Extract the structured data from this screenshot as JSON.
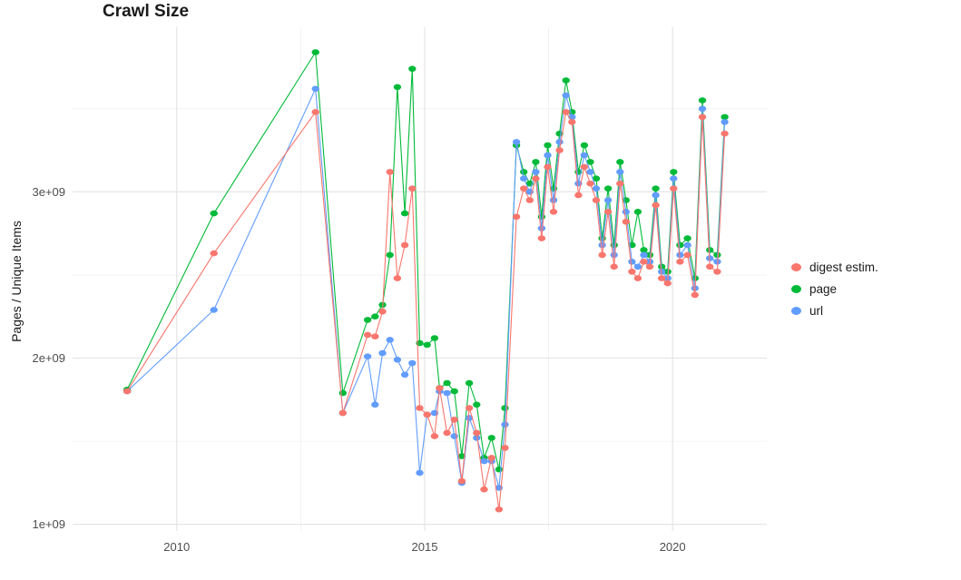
{
  "chart_data": {
    "type": "line",
    "title": "Crawl Size",
    "xlabel": "",
    "ylabel": "Pages / Unique Items",
    "y_unit": "billions (1e9)",
    "xlim": [
      2007.9,
      2021.9
    ],
    "ylim": [
      0.96,
      3.99
    ],
    "grid": true,
    "legend_position": "right",
    "x_ticks": [
      {
        "value": 2010,
        "label": "2010"
      },
      {
        "value": 2015,
        "label": "2015"
      },
      {
        "value": 2020,
        "label": "2020"
      }
    ],
    "y_ticks": [
      {
        "value": 1,
        "label": "1e+09"
      },
      {
        "value": 2,
        "label": "2e+09"
      },
      {
        "value": 3,
        "label": "3e+09"
      }
    ],
    "x_minor": [
      2012.5,
      2017.5
    ],
    "y_minor": [
      1.5,
      2.5,
      3.5
    ],
    "series": [
      {
        "name": "digest estim.",
        "color": "#F8766D",
        "points": [
          [
            2009.0,
            1.8
          ],
          [
            2010.75,
            2.63
          ],
          [
            2012.8,
            3.48
          ],
          [
            2013.35,
            1.67
          ],
          [
            2013.85,
            2.14
          ],
          [
            2014.0,
            2.13
          ],
          [
            2014.15,
            2.28
          ],
          [
            2014.3,
            3.12
          ],
          [
            2014.45,
            2.48
          ],
          [
            2014.6,
            2.68
          ],
          [
            2014.75,
            3.02
          ],
          [
            2014.9,
            1.7
          ],
          [
            2015.05,
            1.66
          ],
          [
            2015.2,
            1.53
          ],
          [
            2015.3,
            1.82
          ],
          [
            2015.45,
            1.55
          ],
          [
            2015.6,
            1.63
          ],
          [
            2015.75,
            1.26
          ],
          [
            2015.9,
            1.7
          ],
          [
            2016.05,
            1.55
          ],
          [
            2016.2,
            1.21
          ],
          [
            2016.35,
            1.4
          ],
          [
            2016.5,
            1.09
          ],
          [
            2016.62,
            1.46
          ],
          [
            2016.85,
            2.85
          ],
          [
            2017.0,
            3.02
          ],
          [
            2017.12,
            2.95
          ],
          [
            2017.24,
            3.08
          ],
          [
            2017.36,
            2.72
          ],
          [
            2017.48,
            3.15
          ],
          [
            2017.6,
            2.88
          ],
          [
            2017.72,
            3.25
          ],
          [
            2017.85,
            3.48
          ],
          [
            2017.97,
            3.42
          ],
          [
            2018.1,
            2.98
          ],
          [
            2018.22,
            3.15
          ],
          [
            2018.34,
            3.05
          ],
          [
            2018.46,
            2.95
          ],
          [
            2018.58,
            2.62
          ],
          [
            2018.7,
            2.88
          ],
          [
            2018.82,
            2.55
          ],
          [
            2018.94,
            3.05
          ],
          [
            2019.06,
            2.82
          ],
          [
            2019.18,
            2.52
          ],
          [
            2019.3,
            2.48
          ],
          [
            2019.42,
            2.58
          ],
          [
            2019.54,
            2.55
          ],
          [
            2019.66,
            2.92
          ],
          [
            2019.78,
            2.48
          ],
          [
            2019.9,
            2.45
          ],
          [
            2020.02,
            3.02
          ],
          [
            2020.15,
            2.58
          ],
          [
            2020.3,
            2.62
          ],
          [
            2020.45,
            2.38
          ],
          [
            2020.6,
            3.45
          ],
          [
            2020.75,
            2.55
          ],
          [
            2020.9,
            2.52
          ],
          [
            2021.05,
            3.35
          ]
        ]
      },
      {
        "name": "page",
        "color": "#00BA38",
        "points": [
          [
            2009.0,
            1.81
          ],
          [
            2010.75,
            2.87
          ],
          [
            2012.8,
            3.84
          ],
          [
            2013.35,
            1.79
          ],
          [
            2013.85,
            2.23
          ],
          [
            2014.0,
            2.25
          ],
          [
            2014.15,
            2.32
          ],
          [
            2014.3,
            2.62
          ],
          [
            2014.45,
            3.63
          ],
          [
            2014.6,
            2.87
          ],
          [
            2014.75,
            3.74
          ],
          [
            2014.9,
            2.09
          ],
          [
            2015.05,
            2.08
          ],
          [
            2015.2,
            2.12
          ],
          [
            2015.3,
            1.82
          ],
          [
            2015.45,
            1.85
          ],
          [
            2015.6,
            1.8
          ],
          [
            2015.75,
            1.41
          ],
          [
            2015.9,
            1.85
          ],
          [
            2016.05,
            1.72
          ],
          [
            2016.2,
            1.4
          ],
          [
            2016.35,
            1.52
          ],
          [
            2016.5,
            1.33
          ],
          [
            2016.62,
            1.7
          ],
          [
            2016.85,
            3.28
          ],
          [
            2017.0,
            3.12
          ],
          [
            2017.12,
            3.05
          ],
          [
            2017.24,
            3.18
          ],
          [
            2017.36,
            2.85
          ],
          [
            2017.48,
            3.28
          ],
          [
            2017.6,
            3.02
          ],
          [
            2017.72,
            3.35
          ],
          [
            2017.85,
            3.67
          ],
          [
            2017.97,
            3.48
          ],
          [
            2018.1,
            3.12
          ],
          [
            2018.22,
            3.28
          ],
          [
            2018.34,
            3.18
          ],
          [
            2018.46,
            3.08
          ],
          [
            2018.58,
            2.72
          ],
          [
            2018.7,
            3.02
          ],
          [
            2018.82,
            2.68
          ],
          [
            2018.94,
            3.18
          ],
          [
            2019.06,
            2.95
          ],
          [
            2019.18,
            2.68
          ],
          [
            2019.3,
            2.88
          ],
          [
            2019.42,
            2.65
          ],
          [
            2019.54,
            2.62
          ],
          [
            2019.66,
            3.02
          ],
          [
            2019.78,
            2.55
          ],
          [
            2019.9,
            2.52
          ],
          [
            2020.02,
            3.12
          ],
          [
            2020.15,
            2.68
          ],
          [
            2020.3,
            2.72
          ],
          [
            2020.45,
            2.48
          ],
          [
            2020.6,
            3.55
          ],
          [
            2020.75,
            2.65
          ],
          [
            2020.9,
            2.62
          ],
          [
            2021.05,
            3.45
          ]
        ]
      },
      {
        "name": "url",
        "color": "#619CFF",
        "points": [
          [
            2009.0,
            1.8
          ],
          [
            2010.75,
            2.29
          ],
          [
            2012.8,
            3.62
          ],
          [
            2013.35,
            1.67
          ],
          [
            2013.85,
            2.01
          ],
          [
            2014.0,
            1.72
          ],
          [
            2014.15,
            2.03
          ],
          [
            2014.3,
            2.11
          ],
          [
            2014.45,
            1.99
          ],
          [
            2014.6,
            1.9
          ],
          [
            2014.75,
            1.97
          ],
          [
            2014.9,
            1.31
          ],
          [
            2015.05,
            1.66
          ],
          [
            2015.2,
            1.67
          ],
          [
            2015.3,
            1.8
          ],
          [
            2015.45,
            1.79
          ],
          [
            2015.6,
            1.53
          ],
          [
            2015.75,
            1.25
          ],
          [
            2015.9,
            1.64
          ],
          [
            2016.05,
            1.52
          ],
          [
            2016.2,
            1.38
          ],
          [
            2016.35,
            1.38
          ],
          [
            2016.5,
            1.22
          ],
          [
            2016.62,
            1.6
          ],
          [
            2016.85,
            3.3
          ],
          [
            2017.0,
            3.08
          ],
          [
            2017.12,
            3.0
          ],
          [
            2017.24,
            3.12
          ],
          [
            2017.36,
            2.78
          ],
          [
            2017.48,
            3.22
          ],
          [
            2017.6,
            2.95
          ],
          [
            2017.72,
            3.3
          ],
          [
            2017.85,
            3.58
          ],
          [
            2017.97,
            3.45
          ],
          [
            2018.1,
            3.05
          ],
          [
            2018.22,
            3.22
          ],
          [
            2018.34,
            3.12
          ],
          [
            2018.46,
            3.02
          ],
          [
            2018.58,
            2.68
          ],
          [
            2018.7,
            2.95
          ],
          [
            2018.82,
            2.62
          ],
          [
            2018.94,
            3.12
          ],
          [
            2019.06,
            2.88
          ],
          [
            2019.18,
            2.58
          ],
          [
            2019.3,
            2.55
          ],
          [
            2019.42,
            2.62
          ],
          [
            2019.54,
            2.58
          ],
          [
            2019.66,
            2.98
          ],
          [
            2019.78,
            2.52
          ],
          [
            2019.9,
            2.48
          ],
          [
            2020.02,
            3.08
          ],
          [
            2020.15,
            2.62
          ],
          [
            2020.3,
            2.68
          ],
          [
            2020.45,
            2.42
          ],
          [
            2020.6,
            3.5
          ],
          [
            2020.75,
            2.6
          ],
          [
            2020.9,
            2.58
          ],
          [
            2021.05,
            3.42
          ]
        ]
      }
    ],
    "colors": {
      "digest_estim": "#F8766D",
      "page": "#00BA38",
      "url": "#619CFF",
      "grid_major": "#E3E3E3",
      "grid_minor": "#F0F0F0",
      "tick_text": "#4D4D4D"
    }
  }
}
